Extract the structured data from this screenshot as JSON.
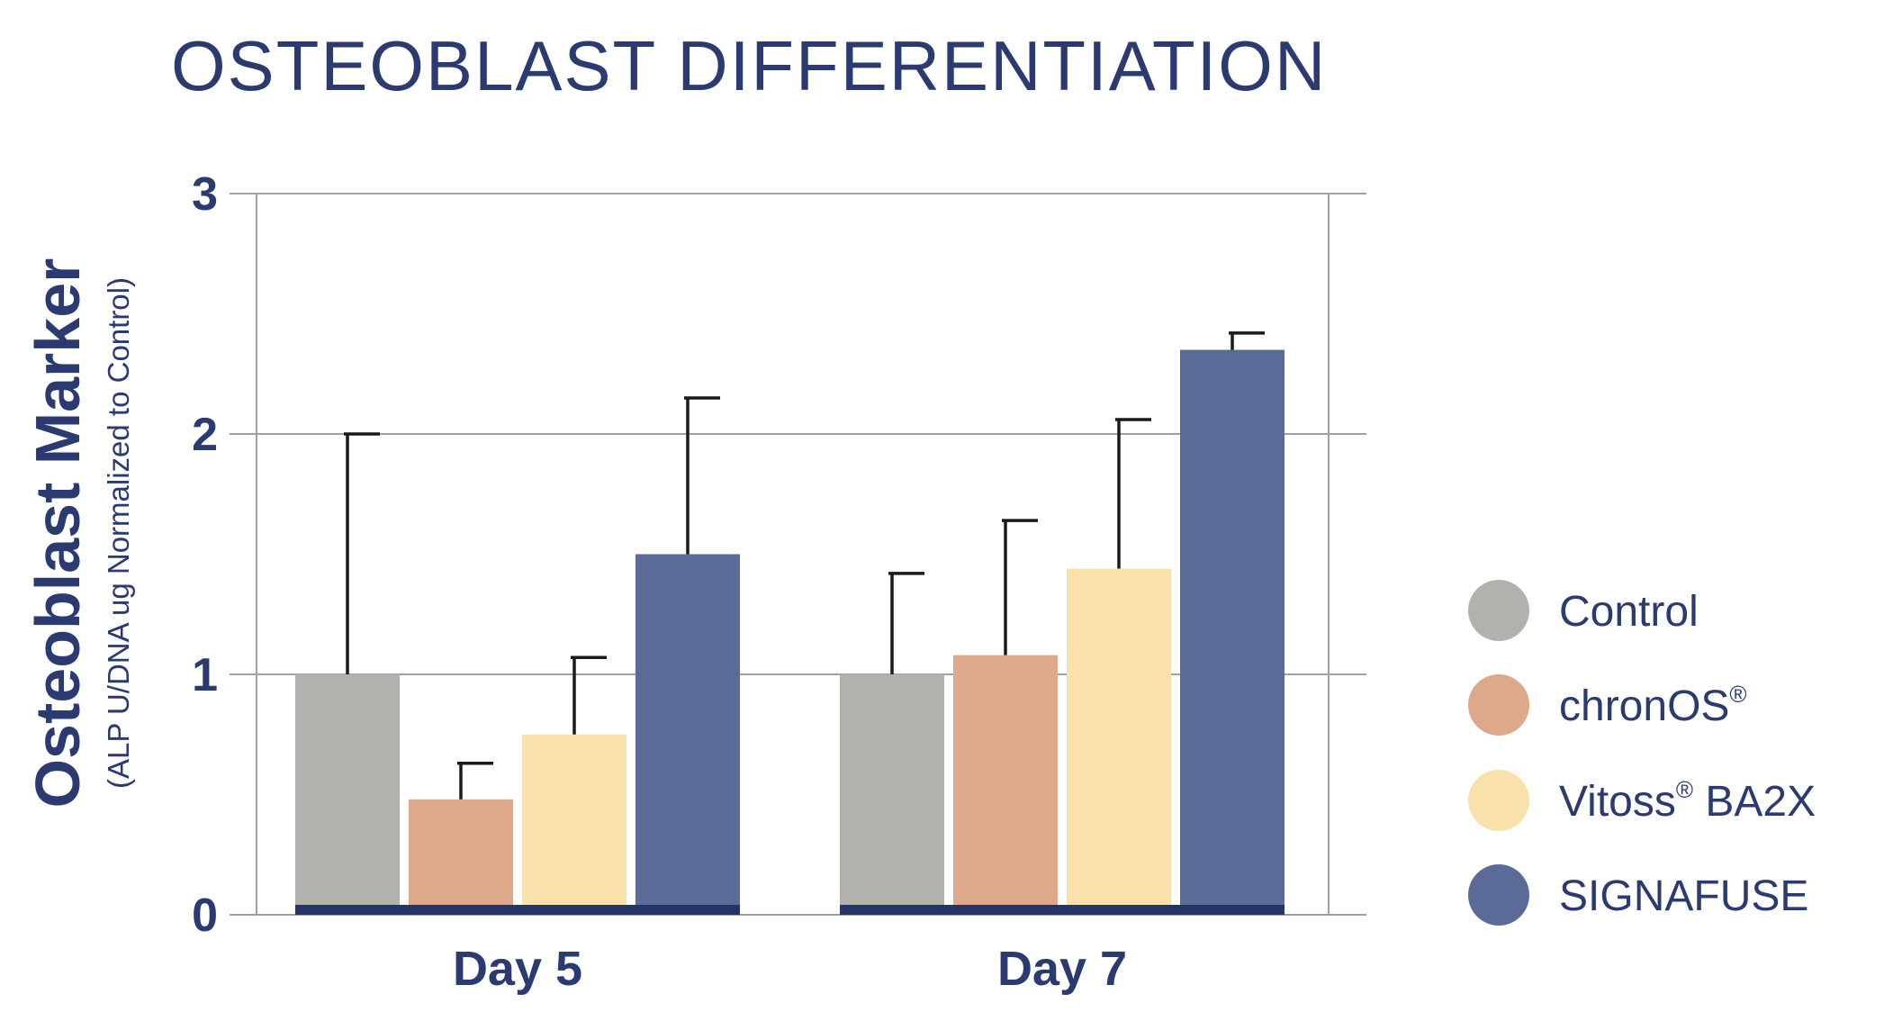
{
  "chart_data": {
    "type": "bar",
    "title": "OSTEOBLAST DIFFERENTIATION",
    "ylabel": "Osteoblast Marker",
    "ylabel_sub": "(ALP U/DNA ug Normalized to Control)",
    "xlabel": "",
    "ylim": [
      0,
      3
    ],
    "yticks": [
      "0",
      "1",
      "2",
      "3"
    ],
    "categories": [
      "Day 5",
      "Day 7"
    ],
    "grid": true,
    "legend_position": "right",
    "series": [
      {
        "name": "Control",
        "name_main": "Control",
        "name_sup": "",
        "name_rest": "",
        "color": "#b1b1ae",
        "values": [
          1.0,
          1.0
        ],
        "errors": [
          1.0,
          0.42
        ]
      },
      {
        "name": "chronOS®",
        "name_main": "chronOS",
        "name_sup": "®",
        "name_rest": "",
        "color": "#dea98a",
        "values": [
          0.48,
          1.08
        ],
        "errors": [
          0.15,
          0.56
        ]
      },
      {
        "name": "Vitoss® BA2X",
        "name_main": "Vitoss",
        "name_sup": "®",
        "name_rest": " BA2X",
        "color": "#f8e1ab",
        "values": [
          0.75,
          1.44
        ],
        "errors": [
          0.32,
          0.62
        ]
      },
      {
        "name": "SIGNAFUSE",
        "name_main": "SIGNAFUSE",
        "name_sup": "",
        "name_rest": "",
        "color": "#5b6b98",
        "values": [
          1.5,
          2.35
        ],
        "errors": [
          0.65,
          0.07
        ]
      }
    ],
    "colors": {
      "axis_text": "#2b3a70",
      "baseline": "#233468",
      "grid": "#a0a0a0",
      "error_bar": "#1a1a1a"
    }
  }
}
